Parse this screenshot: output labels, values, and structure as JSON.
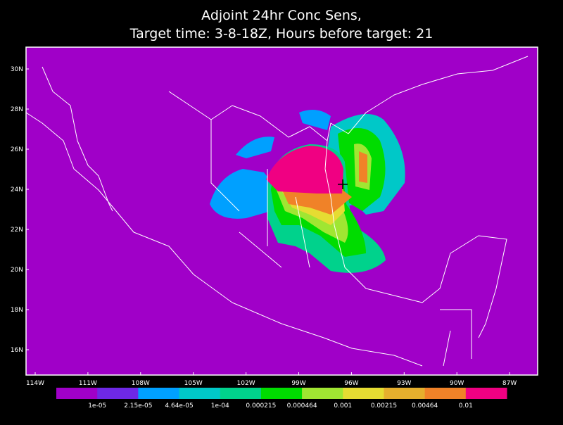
{
  "header": {
    "title_lines": [
      "Adjoint 24hr Conc Sens,",
      "Target time: 3-8-18Z, Hours before target: 21"
    ]
  },
  "map": {
    "lat_labels": [
      "30N",
      "28N",
      "26N",
      "24N",
      "22N",
      "20N",
      "18N",
      "16N"
    ],
    "lon_labels": [
      "114W",
      "111W",
      "108W",
      "105W",
      "102W",
      "99W",
      "96W",
      "93W",
      "90W",
      "87W"
    ]
  },
  "colorbar": {
    "colors": [
      "#a000c8",
      "#6e28e6",
      "#00a0ff",
      "#00c8c8",
      "#00d28c",
      "#00dc00",
      "#a0e632",
      "#e6dc32",
      "#e6af2d",
      "#f08228",
      "#f00082"
    ],
    "labels": [
      "1e-05",
      "2.15e-05",
      "4.64e-05",
      "1e-04",
      "0.000215",
      "0.000464",
      "0.001",
      "0.00215",
      "0.00464",
      "0.01"
    ]
  }
}
